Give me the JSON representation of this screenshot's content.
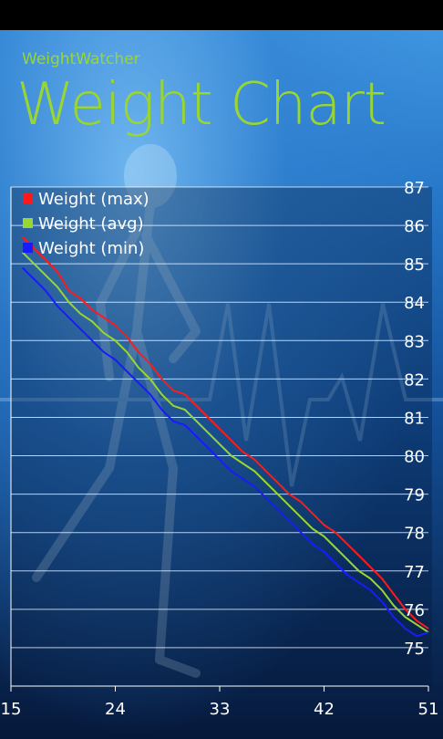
{
  "app": {
    "name": "WeightWatcher",
    "title": "Weight Chart"
  },
  "colors": {
    "title": "#9ad631",
    "grid": "#ffffff",
    "max": "#ff1a1a",
    "avg": "#9ad631",
    "min": "#1a1aff"
  },
  "chart_data": {
    "type": "line",
    "title": "",
    "xlabel": "",
    "ylabel": "",
    "xlim": [
      15,
      51
    ],
    "ylim": [
      74,
      87
    ],
    "x_ticks": [
      15,
      24,
      33,
      42,
      51
    ],
    "y_ticks": [
      75,
      76,
      77,
      78,
      79,
      80,
      81,
      82,
      83,
      84,
      85,
      86,
      87
    ],
    "grid": true,
    "legend_position": "top-left",
    "x": [
      16,
      17,
      18,
      19,
      20,
      21,
      22,
      23,
      24,
      25,
      26,
      27,
      28,
      29,
      30,
      31,
      32,
      33,
      34,
      35,
      36,
      37,
      38,
      39,
      40,
      41,
      42,
      43,
      44,
      45,
      46,
      47,
      48,
      49,
      50,
      51
    ],
    "series": [
      {
        "name": "Weight (max)",
        "color": "#ff1a1a",
        "values": [
          85.7,
          85.4,
          85.1,
          84.8,
          84.3,
          84.1,
          83.8,
          83.6,
          83.4,
          83.1,
          82.7,
          82.4,
          82.0,
          81.7,
          81.6,
          81.3,
          81.0,
          80.7,
          80.4,
          80.1,
          79.9,
          79.6,
          79.3,
          79.0,
          78.8,
          78.5,
          78.2,
          78.0,
          77.7,
          77.4,
          77.1,
          76.8,
          76.4,
          76.0,
          75.7,
          75.5
        ]
      },
      {
        "name": "Weight (avg)",
        "color": "#9ad631",
        "values": [
          85.3,
          85.0,
          84.7,
          84.4,
          84.0,
          83.7,
          83.5,
          83.2,
          83.0,
          82.7,
          82.3,
          82.0,
          81.6,
          81.3,
          81.2,
          80.9,
          80.6,
          80.3,
          80.0,
          79.8,
          79.6,
          79.3,
          79.0,
          78.7,
          78.4,
          78.1,
          77.9,
          77.6,
          77.3,
          77.0,
          76.8,
          76.5,
          76.1,
          75.8,
          75.6,
          75.4
        ]
      },
      {
        "name": "Weight (min)",
        "color": "#1a1aff",
        "values": [
          84.9,
          84.6,
          84.3,
          83.9,
          83.6,
          83.3,
          83.0,
          82.7,
          82.5,
          82.2,
          81.9,
          81.6,
          81.2,
          80.9,
          80.8,
          80.5,
          80.2,
          79.9,
          79.6,
          79.4,
          79.2,
          78.9,
          78.6,
          78.3,
          78.0,
          77.7,
          77.5,
          77.2,
          76.9,
          76.7,
          76.5,
          76.2,
          75.8,
          75.5,
          75.3,
          75.4
        ]
      }
    ]
  }
}
